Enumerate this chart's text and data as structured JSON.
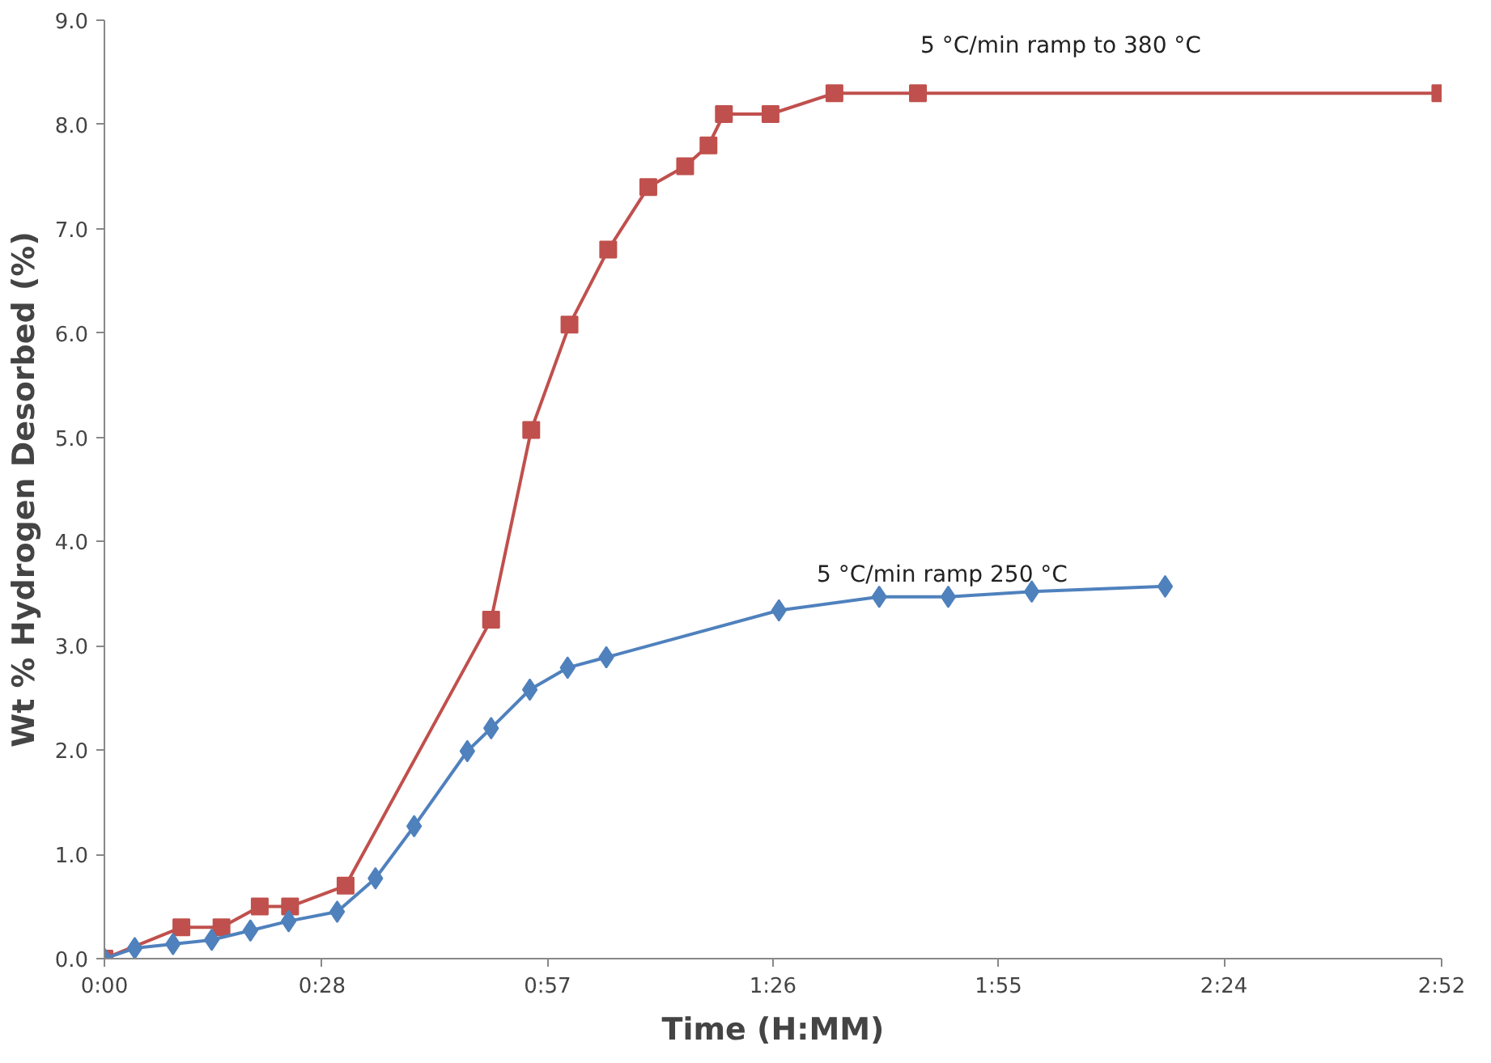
{
  "chart_data": {
    "type": "line",
    "xlabel": "Time (H:MM)",
    "ylabel": "Wt % Hydrogen Desorbed (%)",
    "xlim": [
      0,
      2.8667
    ],
    "ylim": [
      0,
      9
    ],
    "xticks": [
      {
        "value": 0,
        "label": "0:00"
      },
      {
        "value": 0.4667,
        "label": "0:28"
      },
      {
        "value": 0.95,
        "label": "0:57"
      },
      {
        "value": 1.4333,
        "label": "1:26"
      },
      {
        "value": 1.9167,
        "label": "1:55"
      },
      {
        "value": 2.4,
        "label": "2:24"
      },
      {
        "value": 2.8667,
        "label": "2:52"
      }
    ],
    "yticks": [
      {
        "value": 0,
        "label": "0.0"
      },
      {
        "value": 1,
        "label": "1.0"
      },
      {
        "value": 2,
        "label": "2.0"
      },
      {
        "value": 3,
        "label": "3.0"
      },
      {
        "value": 4,
        "label": "4.0"
      },
      {
        "value": 5,
        "label": "5.0"
      },
      {
        "value": 6,
        "label": "6.0"
      },
      {
        "value": 7,
        "label": "7.0"
      },
      {
        "value": 8,
        "label": "8.0"
      },
      {
        "value": 9,
        "label": "9.0"
      }
    ],
    "grid": false,
    "line_style": "solid",
    "series": [
      {
        "color": "#c0504d",
        "marker": "square",
        "x": [
          0,
          0.165,
          0.251,
          0.333,
          0.398,
          0.517,
          0.829,
          0.915,
          0.997,
          1.08,
          1.166,
          1.245,
          1.295,
          1.328,
          1.428,
          1.565,
          1.744,
          2.864
        ],
        "values": [
          0,
          0.3,
          0.3,
          0.5,
          0.5,
          0.7,
          3.25,
          5.07,
          6.08,
          6.8,
          7.4,
          7.6,
          7.8,
          8.1,
          8.1,
          8.3,
          8.3,
          8.3
        ]
      },
      {
        "color": "#4f81bd",
        "marker": "diamond",
        "x": [
          0,
          0.065,
          0.147,
          0.23,
          0.313,
          0.395,
          0.499,
          0.581,
          0.664,
          0.778,
          0.829,
          0.912,
          0.993,
          1.076,
          1.446,
          1.661,
          1.809,
          1.988,
          2.274
        ],
        "values": [
          0,
          0.1,
          0.14,
          0.18,
          0.27,
          0.36,
          0.45,
          0.77,
          1.27,
          1.99,
          2.21,
          2.58,
          2.79,
          2.89,
          3.34,
          3.47,
          3.47,
          3.52,
          3.57
        ]
      }
    ],
    "annotations": [
      "5 °C/min ramp to 380 °C",
      "5 °C/min ramp 250 °C"
    ]
  }
}
